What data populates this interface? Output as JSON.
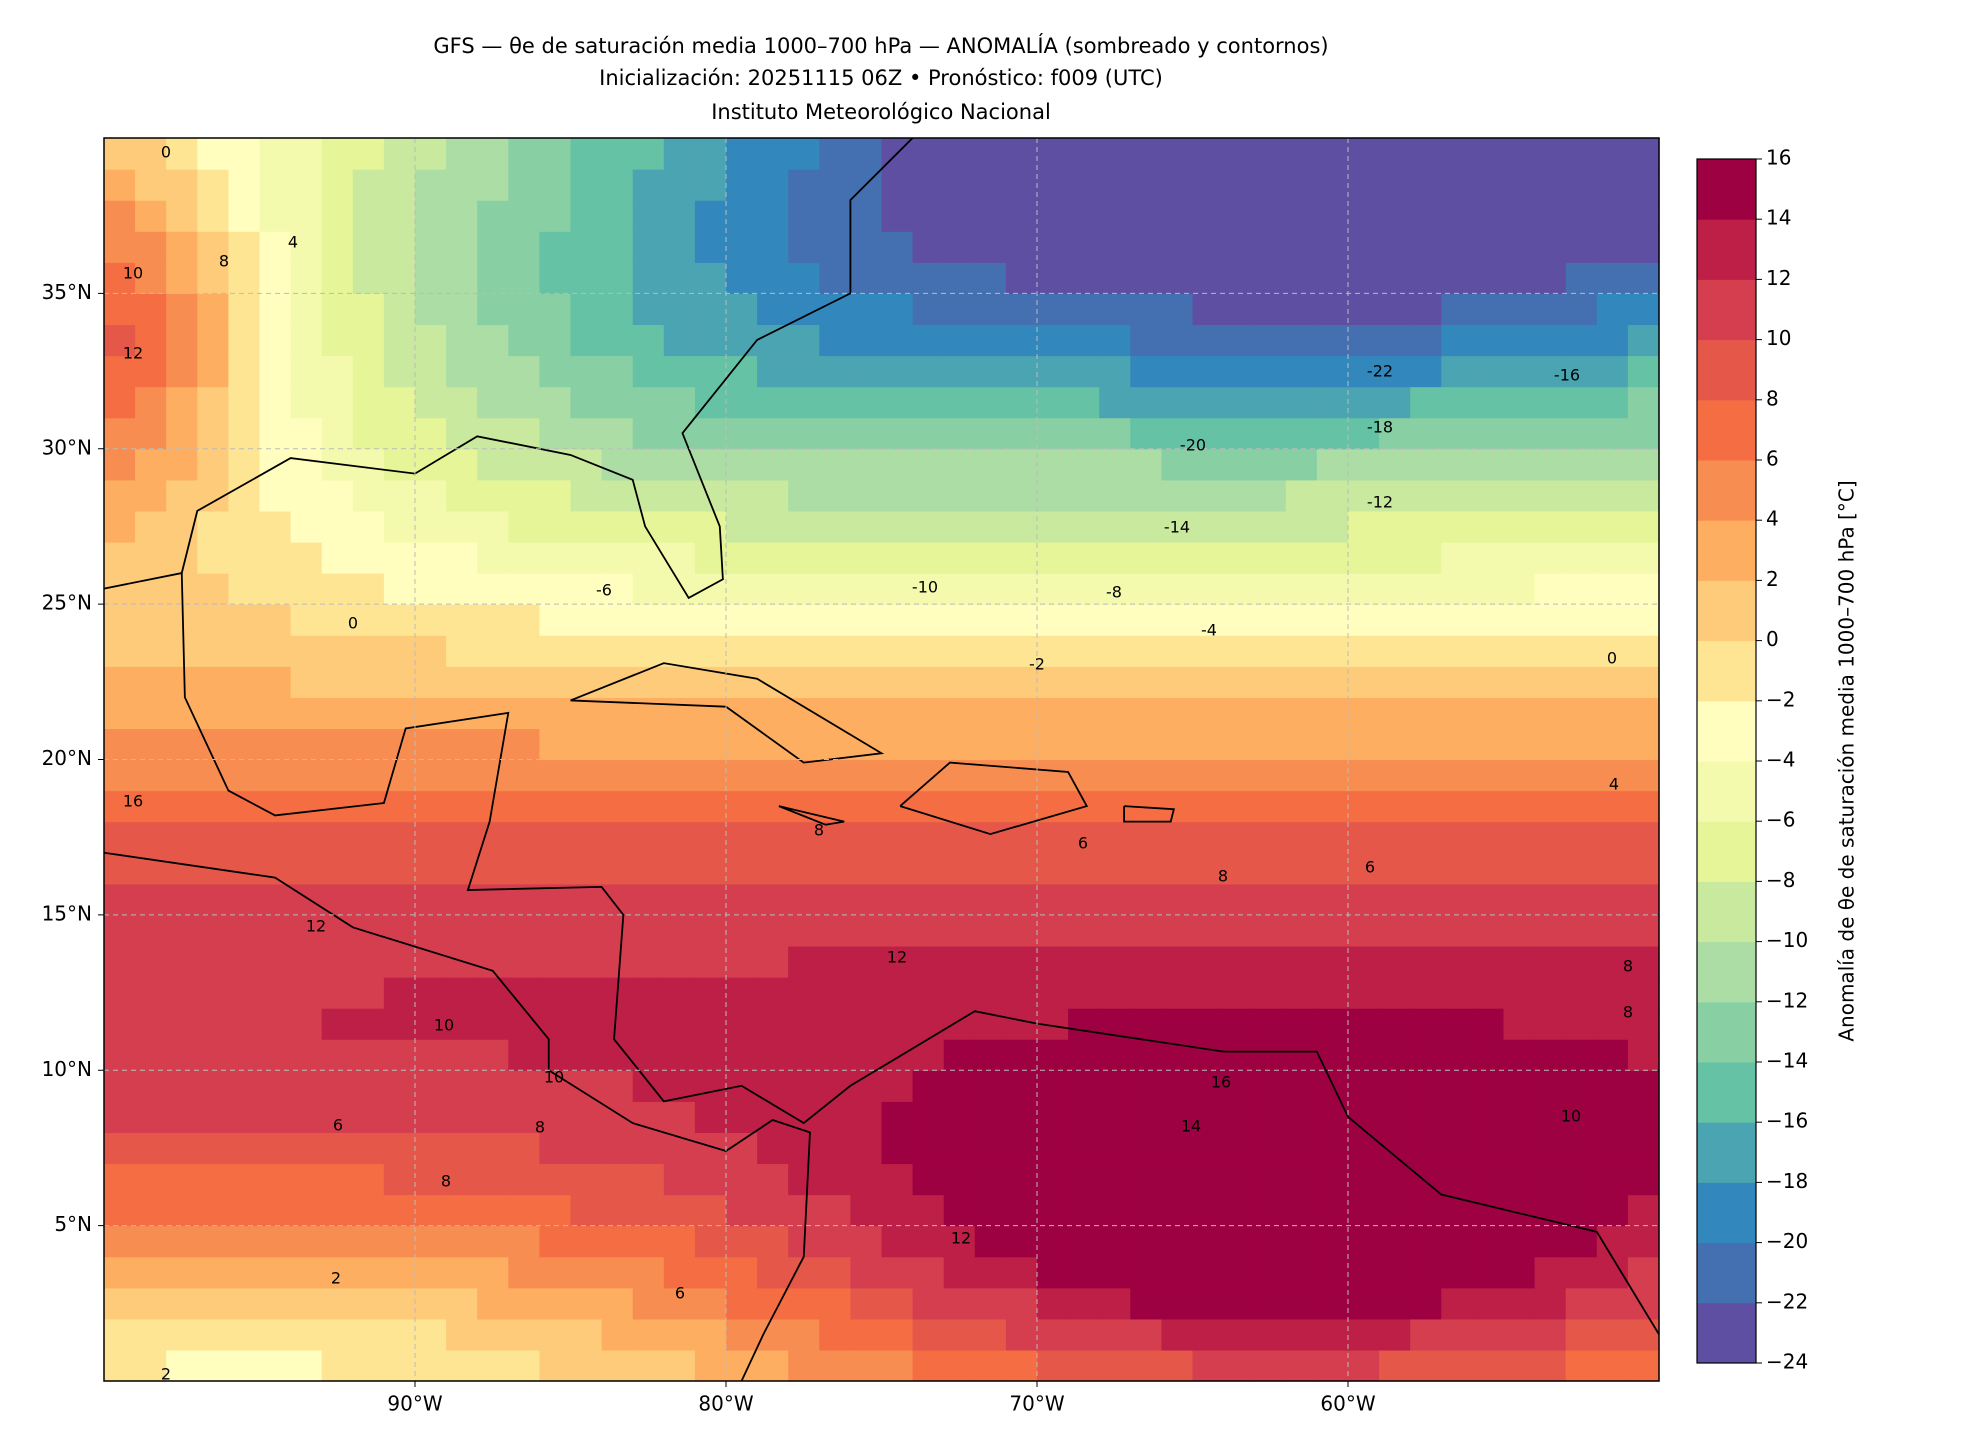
{
  "title_lines": [
    "GFS — θe de saturación media 1000–700 hPa — ANOMALÍA (sombreado y contornos)",
    "Inicialización: 20251115 06Z   •   Pronóstico: f009 (UTC)",
    "Instituto Meteorológico Nacional"
  ],
  "map": {
    "xlim": [
      -100,
      -50
    ],
    "ylim": [
      0,
      40
    ],
    "xticks": [
      {
        "value": -90,
        "label": "90°W"
      },
      {
        "value": -80,
        "label": "80°W"
      },
      {
        "value": -70,
        "label": "70°W"
      },
      {
        "value": -60,
        "label": "60°W"
      }
    ],
    "yticks": [
      {
        "value": 5,
        "label": "5°N"
      },
      {
        "value": 10,
        "label": "10°N"
      },
      {
        "value": 15,
        "label": "15°N"
      },
      {
        "value": 20,
        "label": "20°N"
      },
      {
        "value": 25,
        "label": "25°N"
      },
      {
        "value": 30,
        "label": "30°N"
      },
      {
        "value": 35,
        "label": "35°N"
      }
    ],
    "grid": true
  },
  "colorbar": {
    "label": "Anomalía de θe de saturación media 1000–700 hPa [°C]",
    "lim": [
      -24,
      16
    ],
    "ticks": [
      {
        "value": -24,
        "label": "−24"
      },
      {
        "value": -22,
        "label": "−22"
      },
      {
        "value": -20,
        "label": "−20"
      },
      {
        "value": -18,
        "label": "−18"
      },
      {
        "value": -16,
        "label": "−16"
      },
      {
        "value": -14,
        "label": "−14"
      },
      {
        "value": -12,
        "label": "−12"
      },
      {
        "value": -10,
        "label": "−10"
      },
      {
        "value": -8,
        "label": "−8"
      },
      {
        "value": -6,
        "label": "−6"
      },
      {
        "value": -4,
        "label": "−4"
      },
      {
        "value": -2,
        "label": "−2"
      },
      0,
      2,
      4,
      6,
      8,
      10,
      12,
      14,
      16
    ],
    "colors": [
      "#5e4fa2",
      "#4470b1",
      "#3288bd",
      "#4ba4b1",
      "#66c2a5",
      "#88d0a4",
      "#abdda4",
      "#c9e99e",
      "#e6f598",
      "#f4faad",
      "#fffebe",
      "#fee593",
      "#fdcb7a",
      "#fdae61",
      "#f88d52",
      "#f46d43",
      "#e55749",
      "#d53e4f",
      "#bd1f47",
      "#9e0142"
    ]
  },
  "contour_labels": [
    0,
    10,
    8,
    4,
    12,
    -22,
    -16,
    -18,
    -20,
    -12,
    -14,
    -6,
    -10,
    -8,
    -4,
    -2,
    0,
    0,
    6,
    8,
    6,
    8,
    4,
    12,
    10,
    10,
    8,
    6,
    8,
    14,
    16,
    10,
    2,
    6,
    12,
    2,
    8,
    8,
    12,
    16
  ]
}
